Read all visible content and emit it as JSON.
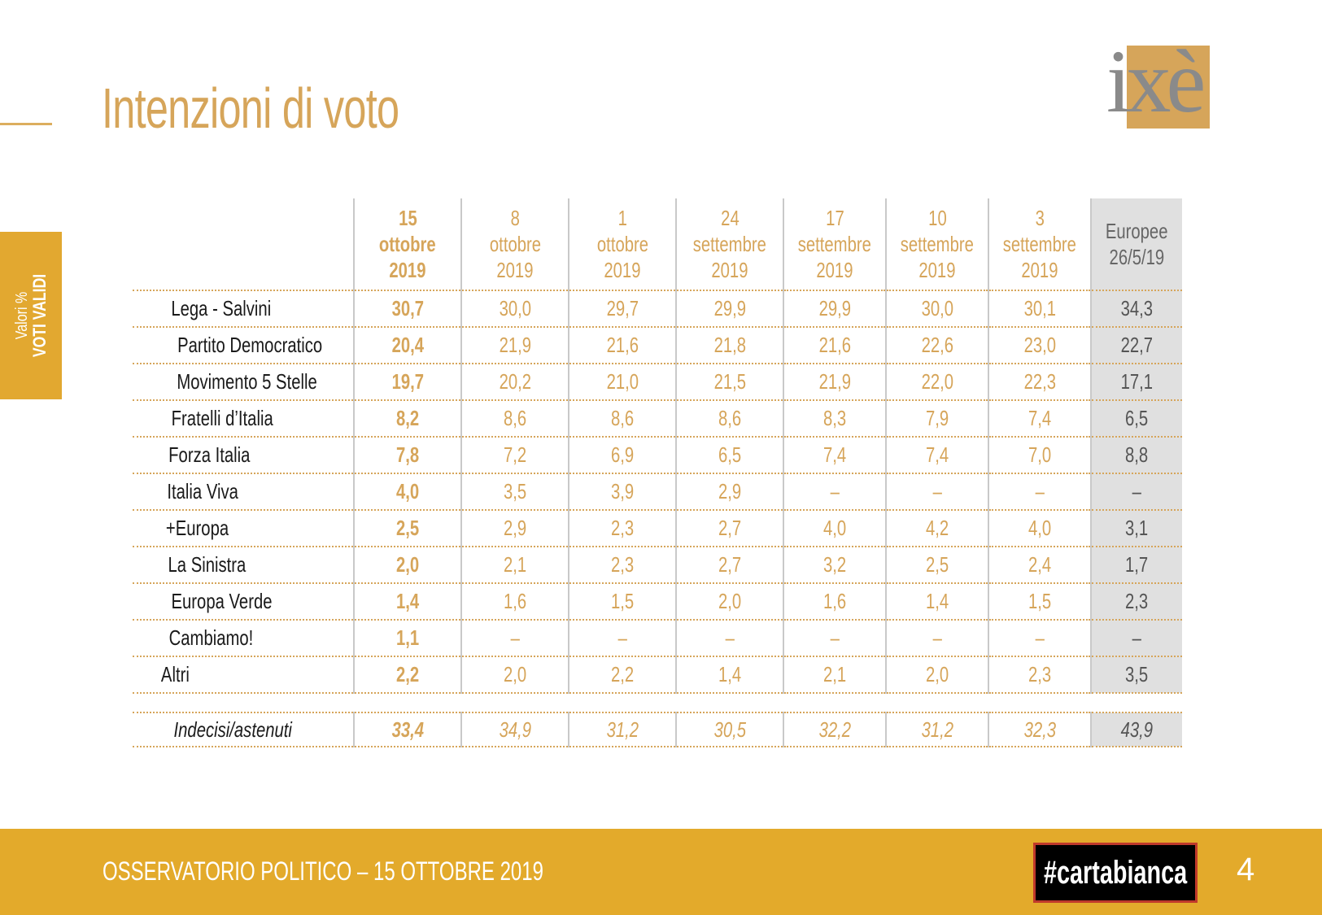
{
  "header": {
    "title": "Intenzioni di voto"
  },
  "logo": {
    "text": "ixè"
  },
  "side_tab": {
    "line1": "Valori %",
    "line2": "VOTI VALIDI"
  },
  "table": {
    "columns": [
      {
        "day": "15",
        "month": "ottobre",
        "year": "2019"
      },
      {
        "day": "8",
        "month": "ottobre",
        "year": "2019"
      },
      {
        "day": "1",
        "month": "ottobre",
        "year": "2019"
      },
      {
        "day": "24",
        "month": "settembre",
        "year": "2019"
      },
      {
        "day": "17",
        "month": "settembre",
        "year": "2019"
      },
      {
        "day": "10",
        "month": "settembre",
        "year": "2019"
      },
      {
        "day": "3",
        "month": "settembre",
        "year": "2019"
      }
    ],
    "eu_column": {
      "line1": "Europee",
      "line2": "26/5/19"
    },
    "rows": [
      {
        "name": "Lega - Salvini",
        "values": [
          "30,7",
          "30,0",
          "29,7",
          "29,9",
          "29,9",
          "30,0",
          "30,1",
          "34,3"
        ]
      },
      {
        "name": "Partito Democratico",
        "values": [
          "20,4",
          "21,9",
          "21,6",
          "21,8",
          "21,6",
          "22,6",
          "23,0",
          "22,7"
        ]
      },
      {
        "name": "Movimento 5 Stelle",
        "values": [
          "19,7",
          "20,2",
          "21,0",
          "21,5",
          "21,9",
          "22,0",
          "22,3",
          "17,1"
        ]
      },
      {
        "name": "Fratelli d’Italia",
        "values": [
          "8,2",
          "8,6",
          "8,6",
          "8,6",
          "8,3",
          "7,9",
          "7,4",
          "6,5"
        ]
      },
      {
        "name": "Forza Italia",
        "values": [
          "7,8",
          "7,2",
          "6,9",
          "6,5",
          "7,4",
          "7,4",
          "7,0",
          "8,8"
        ]
      },
      {
        "name": "Italia Viva",
        "values": [
          "4,0",
          "3,5",
          "3,9",
          "2,9",
          "–",
          "–",
          "–",
          "–"
        ]
      },
      {
        "name": "+Europa",
        "values": [
          "2,5",
          "2,9",
          "2,3",
          "2,7",
          "4,0",
          "4,2",
          "4,0",
          "3,1"
        ]
      },
      {
        "name": "La Sinistra",
        "values": [
          "2,0",
          "2,1",
          "2,3",
          "2,7",
          "3,2",
          "2,5",
          "2,4",
          "1,7"
        ]
      },
      {
        "name": "Europa Verde",
        "values": [
          "1,4",
          "1,6",
          "1,5",
          "2,0",
          "1,6",
          "1,4",
          "1,5",
          "2,3"
        ]
      },
      {
        "name": "Cambiamo!",
        "values": [
          "1,1",
          "–",
          "–",
          "–",
          "–",
          "–",
          "–",
          "–"
        ]
      },
      {
        "name": "Altri",
        "values": [
          "2,2",
          "2,0",
          "2,2",
          "1,4",
          "2,1",
          "2,0",
          "2,3",
          "3,5"
        ]
      }
    ],
    "undecided": {
      "name": "Indecisi/astenuti",
      "values": [
        "33,4",
        "34,9",
        "31,2",
        "30,5",
        "32,2",
        "31,2",
        "32,3",
        "43,9"
      ]
    }
  },
  "chart_data": {
    "type": "table",
    "title": "Intenzioni di voto",
    "unit": "Valori % VOTI VALIDI",
    "columns": [
      "15 ottobre 2019",
      "8 ottobre 2019",
      "1 ottobre 2019",
      "24 settembre 2019",
      "17 settembre 2019",
      "10 settembre 2019",
      "3 settembre 2019",
      "Europee 26/5/19"
    ],
    "series": [
      {
        "name": "Lega - Salvini",
        "values": [
          30.7,
          30.0,
          29.7,
          29.9,
          29.9,
          30.0,
          30.1,
          34.3
        ]
      },
      {
        "name": "Partito Democratico",
        "values": [
          20.4,
          21.9,
          21.6,
          21.8,
          21.6,
          22.6,
          23.0,
          22.7
        ]
      },
      {
        "name": "Movimento 5 Stelle",
        "values": [
          19.7,
          20.2,
          21.0,
          21.5,
          21.9,
          22.0,
          22.3,
          17.1
        ]
      },
      {
        "name": "Fratelli d’Italia",
        "values": [
          8.2,
          8.6,
          8.6,
          8.6,
          8.3,
          7.9,
          7.4,
          6.5
        ]
      },
      {
        "name": "Forza Italia",
        "values": [
          7.8,
          7.2,
          6.9,
          6.5,
          7.4,
          7.4,
          7.0,
          8.8
        ]
      },
      {
        "name": "Italia Viva",
        "values": [
          4.0,
          3.5,
          3.9,
          2.9,
          null,
          null,
          null,
          null
        ]
      },
      {
        "name": "+Europa",
        "values": [
          2.5,
          2.9,
          2.3,
          2.7,
          4.0,
          4.2,
          4.0,
          3.1
        ]
      },
      {
        "name": "La Sinistra",
        "values": [
          2.0,
          2.1,
          2.3,
          2.7,
          3.2,
          2.5,
          2.4,
          1.7
        ]
      },
      {
        "name": "Europa Verde",
        "values": [
          1.4,
          1.6,
          1.5,
          2.0,
          1.6,
          1.4,
          1.5,
          2.3
        ]
      },
      {
        "name": "Cambiamo!",
        "values": [
          1.1,
          null,
          null,
          null,
          null,
          null,
          null,
          null
        ]
      },
      {
        "name": "Altri",
        "values": [
          2.2,
          2.0,
          2.2,
          1.4,
          2.1,
          2.0,
          2.3,
          3.5
        ]
      },
      {
        "name": "Indecisi/astenuti",
        "values": [
          33.4,
          34.9,
          31.2,
          30.5,
          32.2,
          31.2,
          32.3,
          43.9
        ]
      }
    ]
  },
  "footer": {
    "text": "OSSERVATORIO POLITICO – 15 OTTOBRE 2019",
    "badge": "#cartabianca",
    "page": "4"
  },
  "colors": {
    "accent": "#d6a55a",
    "footer_bg": "#e3aa2b",
    "eu_bg": "#e0e0e0"
  }
}
